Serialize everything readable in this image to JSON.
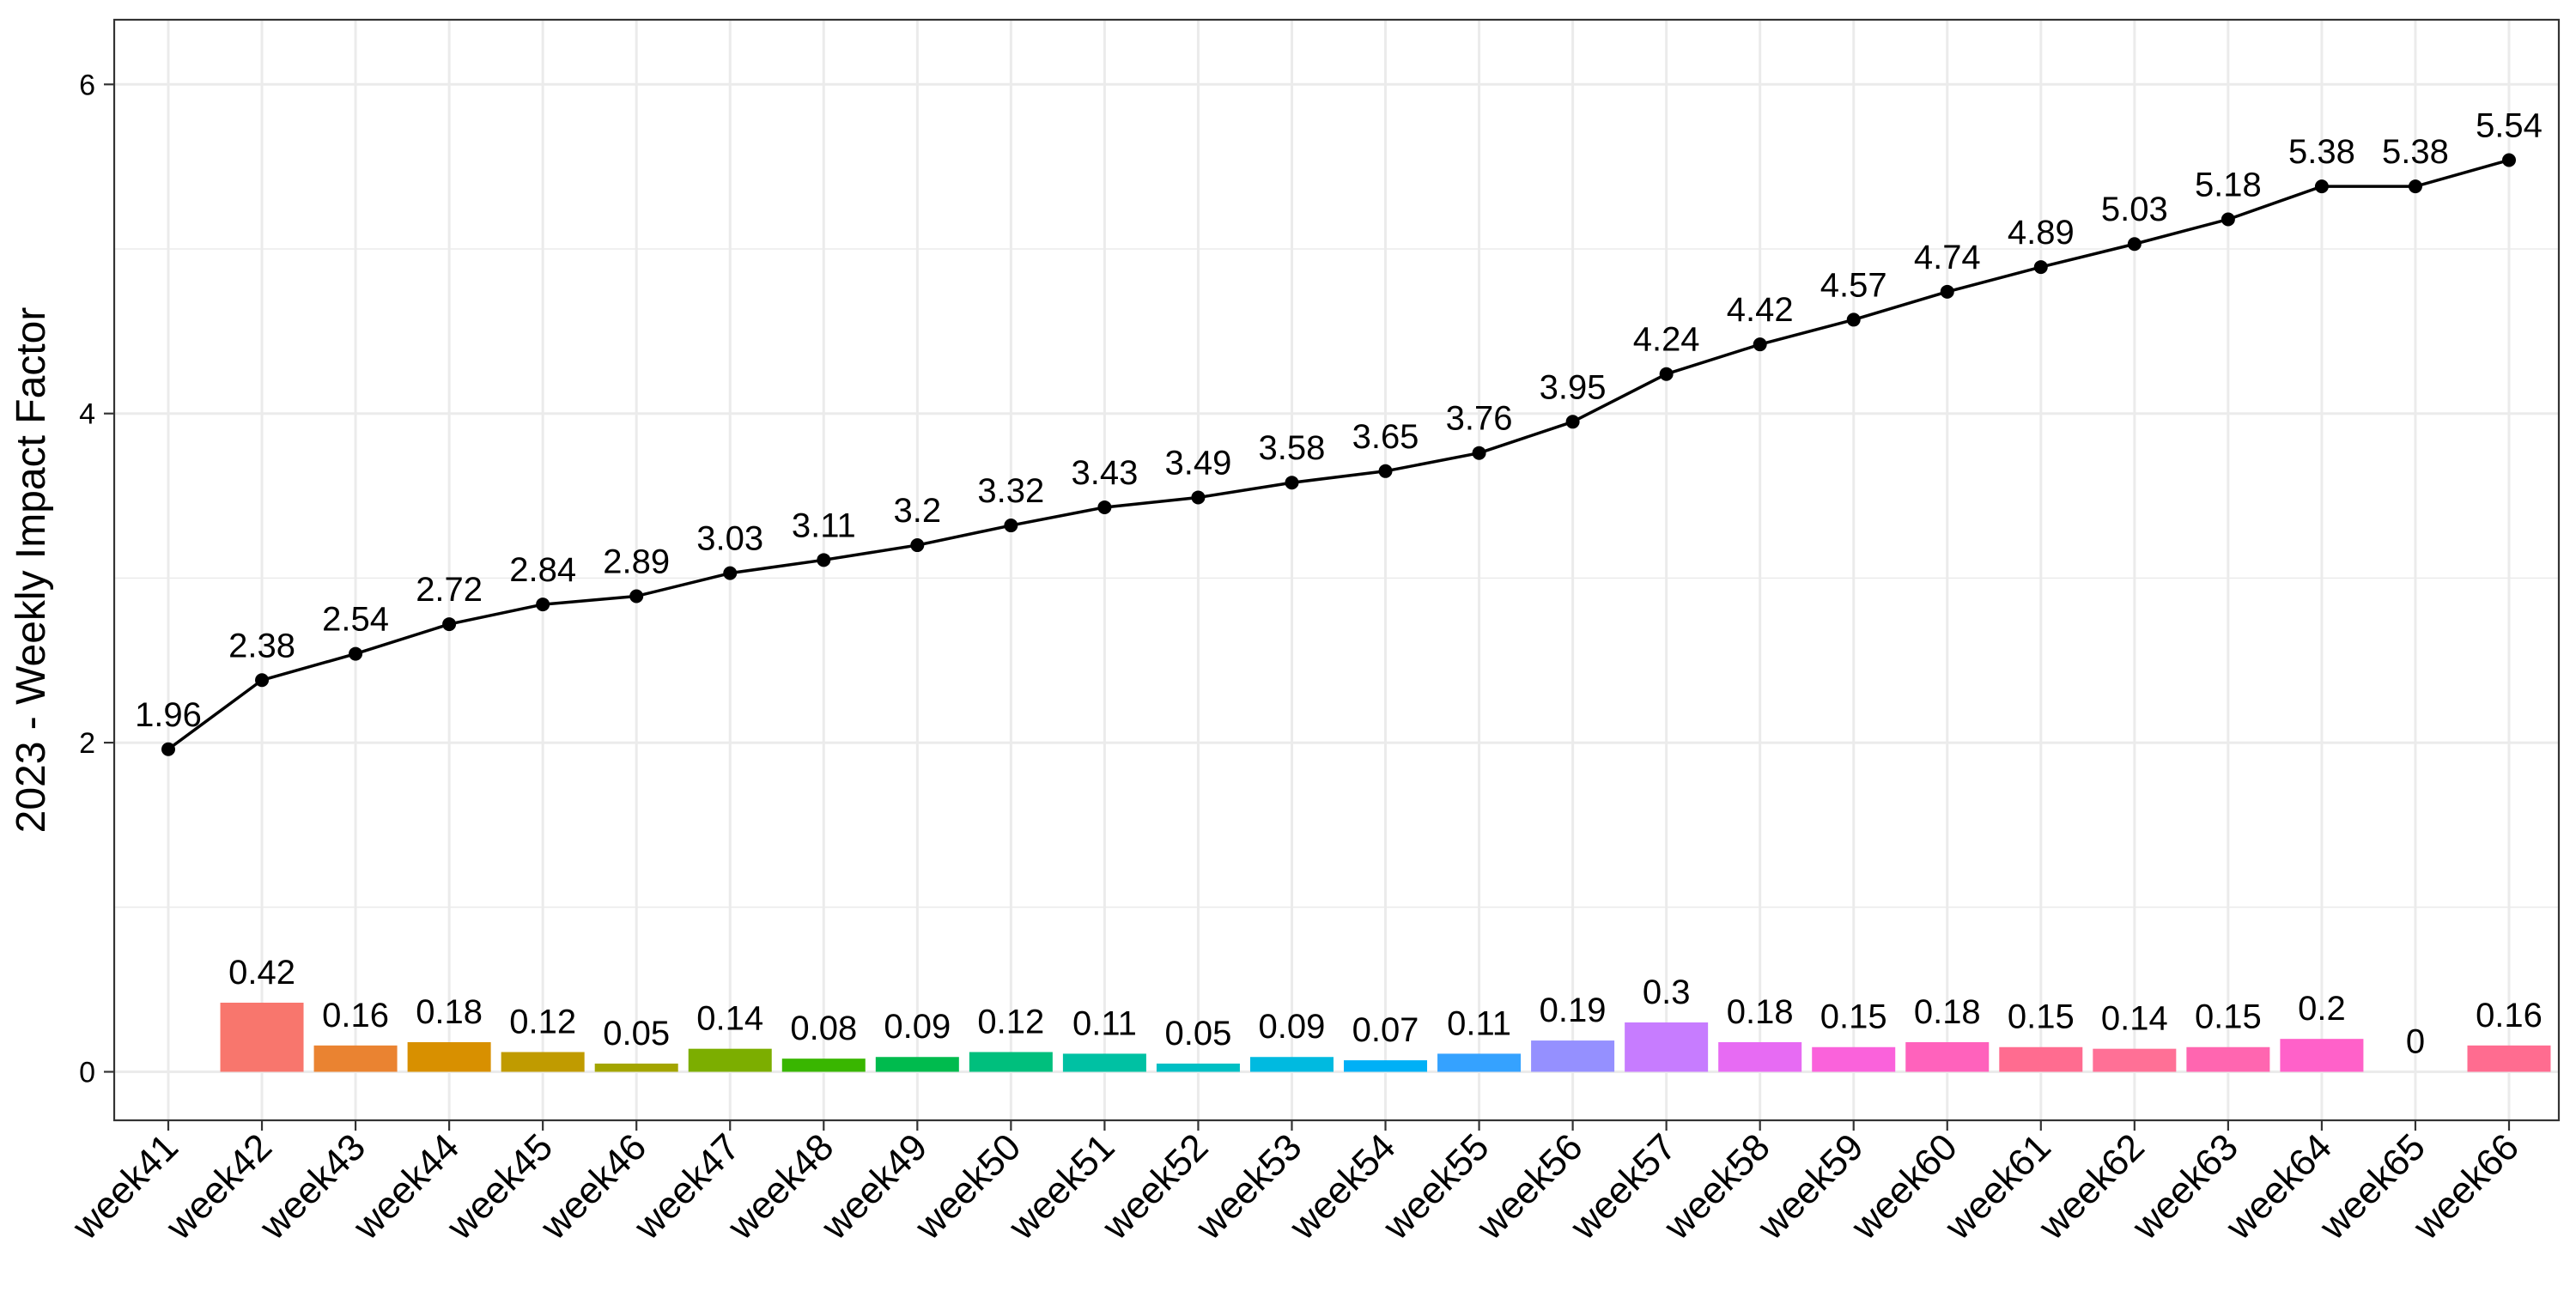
{
  "chart_data": {
    "type": "bar+line",
    "title": "",
    "xlabel": "",
    "ylabel": "2023 - Weekly Impact Factor",
    "ylim": [
      -0.3,
      6.4
    ],
    "yticks": [
      0,
      2,
      4,
      6
    ],
    "grid": true,
    "legend": "none",
    "categories": [
      "week41",
      "week42",
      "week43",
      "week44",
      "week45",
      "week46",
      "week47",
      "week48",
      "week49",
      "week50",
      "week51",
      "week52",
      "week53",
      "week54",
      "week55",
      "week56",
      "week57",
      "week58",
      "week59",
      "week60",
      "week61",
      "week62",
      "week63",
      "week64",
      "week65",
      "week66"
    ],
    "series": [
      {
        "type": "line",
        "values": [
          1.96,
          2.38,
          2.54,
          2.72,
          2.84,
          2.89,
          3.03,
          3.11,
          3.2,
          3.32,
          3.43,
          3.49,
          3.58,
          3.65,
          3.76,
          3.95,
          4.24,
          4.42,
          4.57,
          4.74,
          4.89,
          5.03,
          5.18,
          5.38,
          5.38,
          5.54
        ],
        "labels": [
          "1.96",
          "2.38",
          "2.54",
          "2.72",
          "2.84",
          "2.89",
          "3.03",
          "3.11",
          "3.2",
          "3.32",
          "3.43",
          "3.49",
          "3.58",
          "3.65",
          "3.76",
          "3.95",
          "4.24",
          "4.42",
          "4.57",
          "4.74",
          "4.89",
          "5.03",
          "5.18",
          "5.38",
          "5.38",
          "5.54"
        ],
        "color": "#000000"
      },
      {
        "type": "bar",
        "values": [
          null,
          0.42,
          0.16,
          0.18,
          0.12,
          0.05,
          0.14,
          0.08,
          0.09,
          0.12,
          0.11,
          0.05,
          0.09,
          0.07,
          0.11,
          0.19,
          0.3,
          0.18,
          0.15,
          0.18,
          0.15,
          0.14,
          0.15,
          0.2,
          0,
          0.16
        ],
        "labels": [
          "",
          "0.42",
          "0.16",
          "0.18",
          "0.12",
          "0.05",
          "0.14",
          "0.08",
          "0.09",
          "0.12",
          "0.11",
          "0.05",
          "0.09",
          "0.07",
          "0.11",
          "0.19",
          "0.3",
          "0.18",
          "0.15",
          "0.18",
          "0.15",
          "0.14",
          "0.15",
          "0.2",
          "0",
          "0.16"
        ],
        "colors": [
          "#F8766D",
          "#F8766D",
          "#EA8331",
          "#D89000",
          "#C09B00",
          "#A3A500",
          "#7CAE00",
          "#39B600",
          "#00BB4E",
          "#00BF7D",
          "#00C1A3",
          "#00BFC4",
          "#00BAE0",
          "#00B0F6",
          "#35A2FF",
          "#9590FF",
          "#C77CFF",
          "#E76BF3",
          "#FA62DB",
          "#FF62BC",
          "#FF6C90",
          "#FF7096",
          "#FF66B0",
          "#FF61C9",
          "#FF62BC",
          "#FF6C90"
        ]
      }
    ]
  }
}
